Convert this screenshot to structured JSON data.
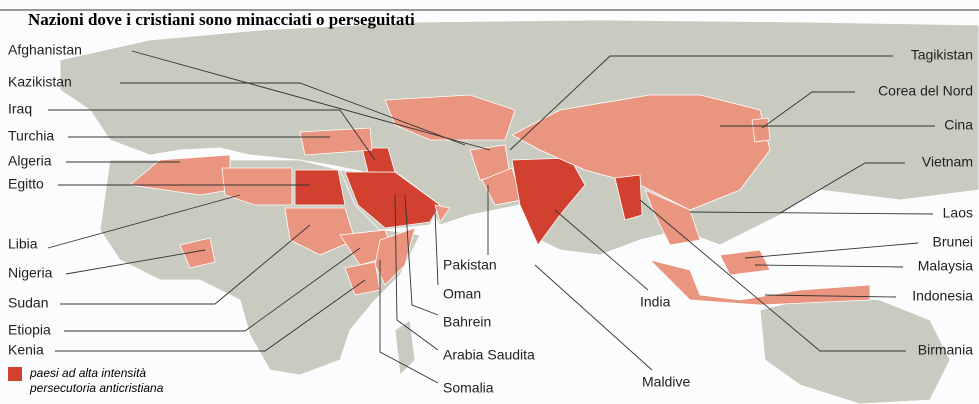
{
  "title": "Nazioni dove i cristiani sono minacciati o perseguitati",
  "labels": [
    "Afghanistan",
    "Kazikistan",
    "Iraq",
    "Turchia",
    "Algeria",
    "Egitto",
    "Libia",
    "Nigeria",
    "Sudan",
    "Etiopia",
    "Kenia",
    "Tagikistan",
    "Corea del Nord",
    "Cina",
    "Vietnam",
    "Laos",
    "Brunei",
    "Malaysia",
    "Indonesia",
    "Birmania",
    "Pakistan",
    "Oman",
    "Bahrein",
    "Arabia Saudita",
    "Somalia",
    "India",
    "Maldive"
  ],
  "legend": [
    "paesi ad alta intensità",
    "persecutoria anticristiana"
  ]
}
